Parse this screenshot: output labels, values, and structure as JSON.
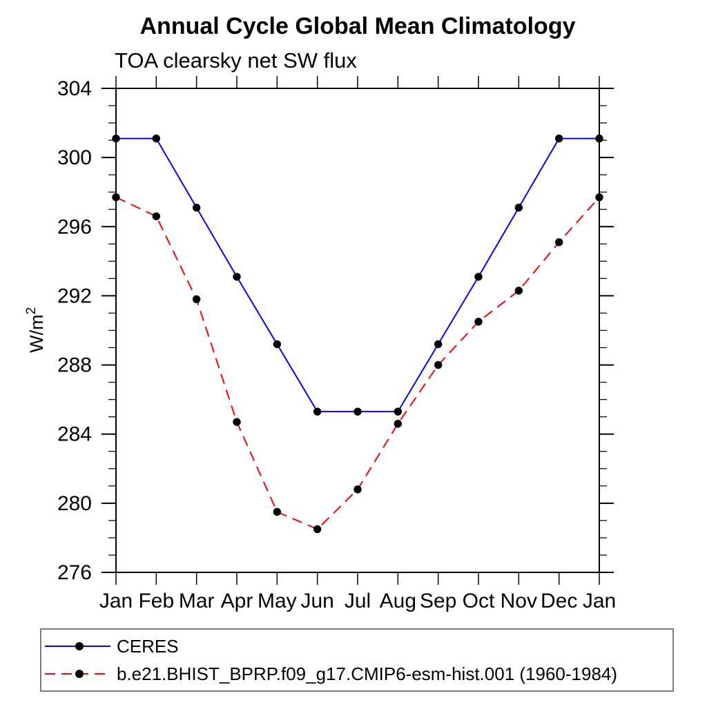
{
  "header": {
    "title": "Annual Cycle Global Mean Climatology",
    "subtitle": "TOA clearsky net SW flux"
  },
  "chart_data": {
    "type": "line",
    "title": "Annual Cycle Global Mean Climatology",
    "subtitle": "TOA clearsky net SW flux",
    "xlabel": "",
    "ylabel": "W/m²",
    "ylabel_parts": {
      "base": "W/m",
      "exp": "2"
    },
    "categories": [
      "Jan",
      "Feb",
      "Mar",
      "Apr",
      "May",
      "Jun",
      "Jul",
      "Aug",
      "Sep",
      "Oct",
      "Nov",
      "Dec",
      "Jan"
    ],
    "series": [
      {
        "name": "CERES",
        "color": "#0000ff",
        "line_style": "solid",
        "marker": "filled-circle",
        "marker_color": "#000000",
        "values": [
          301.1,
          301.1,
          297.1,
          293.1,
          289.2,
          285.3,
          285.3,
          285.3,
          289.2,
          293.1,
          297.1,
          301.1,
          301.1
        ]
      },
      {
        "name": "b.e21.BHIST_BPRP.f09_g17.CMIP6-esm-hist.001 (1960-1984)",
        "color": "#ff0000",
        "line_style": "dashed",
        "marker": "filled-circle",
        "marker_color": "#000000",
        "values": [
          297.7,
          296.6,
          291.8,
          284.7,
          279.5,
          278.5,
          280.8,
          284.6,
          288.0,
          290.5,
          292.3,
          295.1,
          297.7
        ]
      }
    ],
    "ylim": [
      276,
      304
    ],
    "y_major_ticks": [
      276,
      280,
      284,
      288,
      292,
      296,
      300,
      304
    ],
    "y_minor_step": 1,
    "grid": false,
    "tick_direction": "out",
    "legend_position": "bottom-left-box"
  }
}
